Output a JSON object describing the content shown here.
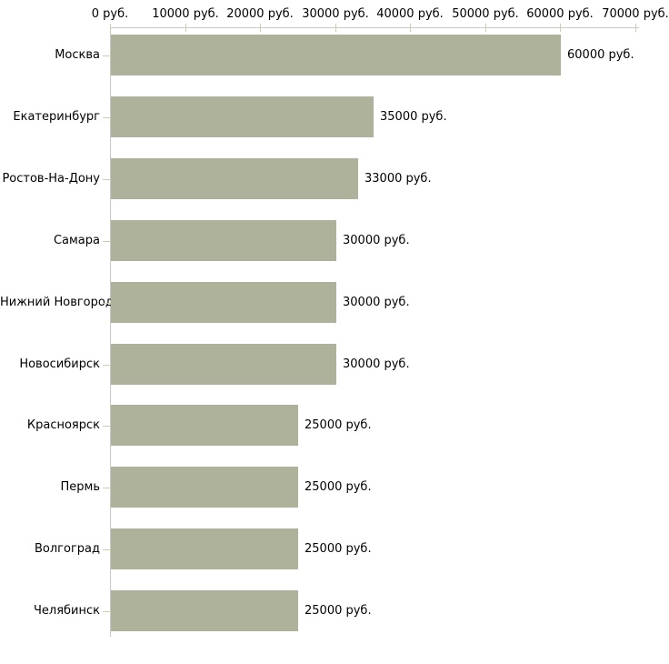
{
  "chart_data": {
    "type": "bar",
    "orientation": "horizontal",
    "title": "",
    "xlabel": "",
    "ylabel": "",
    "unit": "руб.",
    "categories": [
      "Москва",
      "Екатеринбург",
      "Ростов-На-Дону",
      "Самара",
      "Нижний Новгород",
      "Новосибирск",
      "Красноярск",
      "Пермь",
      "Волгоград",
      "Челябинск"
    ],
    "values": [
      60000,
      35000,
      33000,
      30000,
      30000,
      30000,
      25000,
      25000,
      25000,
      25000
    ],
    "bar_labels": [
      "60000 руб.",
      "35000 руб.",
      "33000 руб.",
      "30000 руб.",
      "30000 руб.",
      "30000 руб.",
      "25000 руб.",
      "25000 руб.",
      "25000 руб.",
      "25000 руб."
    ],
    "x_ticks": [
      0,
      10000,
      20000,
      30000,
      40000,
      50000,
      60000,
      70000
    ],
    "x_tick_labels": [
      "0 руб.",
      "10000 руб.",
      "20000 руб.",
      "30000 руб.",
      "40000 руб.",
      "50000 руб.",
      "60000 руб.",
      "70000 руб."
    ],
    "xlim": [
      0,
      70000
    ],
    "grid": false,
    "legend": null,
    "colors": {
      "bar": "#aeb29b",
      "axis": "#c9c9c9",
      "tick": "#d2cca9",
      "text": "#000000",
      "background": "#ffffff"
    }
  }
}
